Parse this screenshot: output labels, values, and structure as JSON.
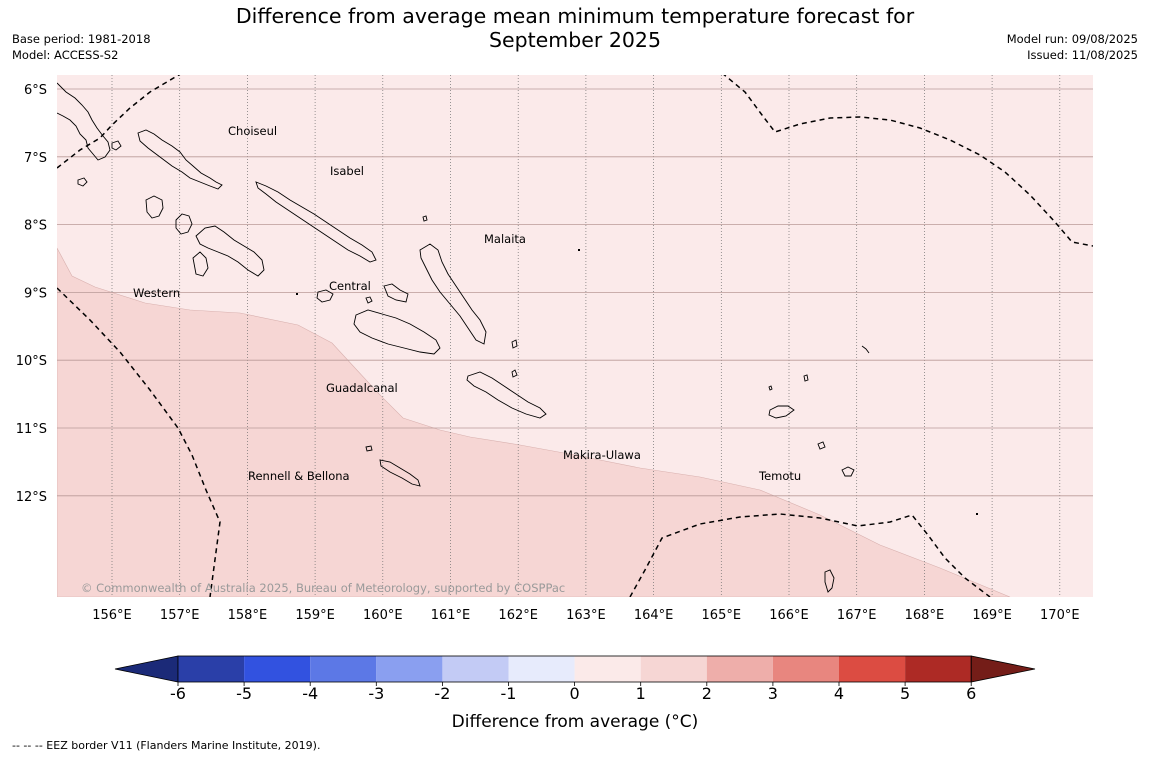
{
  "title_line1": "Difference from average mean minimum temperature forecast for",
  "title_line2": "September 2025",
  "base_period": "Base period: 1981-2018",
  "model": "Model: ACCESS-S2",
  "model_run": "Model run: 09/08/2025",
  "issued": "Issued: 11/08/2025",
  "copyright": "© Commonwealth of Australia 2025, Bureau of Meteorology, supported by COSPPac",
  "lat_labels": [
    "6°S",
    "7°S",
    "8°S",
    "9°S",
    "10°S",
    "11°S",
    "12°S"
  ],
  "lon_labels": [
    "156°E",
    "157°E",
    "158°E",
    "159°E",
    "160°E",
    "161°E",
    "162°E",
    "163°E",
    "164°E",
    "165°E",
    "166°E",
    "167°E",
    "168°E",
    "169°E",
    "170°E"
  ],
  "provinces": [
    "Choiseul",
    "Isabel",
    "Malaita",
    "Western",
    "Central",
    "Guadalcanal",
    "Makira-Ulawa",
    "Rennell & Bellona",
    "Temotu"
  ],
  "colorbar": {
    "ticks": [
      "-6",
      "-5",
      "-4",
      "-3",
      "-2",
      "-1",
      "0",
      "1",
      "2",
      "3",
      "4",
      "5",
      "6"
    ],
    "colors": [
      "#2a3fa8",
      "#3252e0",
      "#5c78e6",
      "#8a9ff0",
      "#c3cbf5",
      "#e7ebfc",
      "#fbeae9",
      "#f6d6d4",
      "#eeaeaa",
      "#e8867f",
      "#dc4c42",
      "#ad2a25"
    ],
    "under_color": "#1b2a78",
    "over_color": "#741d18",
    "label": "Difference from average (°C)"
  },
  "map_colors": {
    "anomaly_0_1": "#fbeaea",
    "anomaly_1_2": "#f6d6d4"
  },
  "eez_note": "--  --  -- EEZ border V11 (Flanders Marine Institute, 2019)."
}
